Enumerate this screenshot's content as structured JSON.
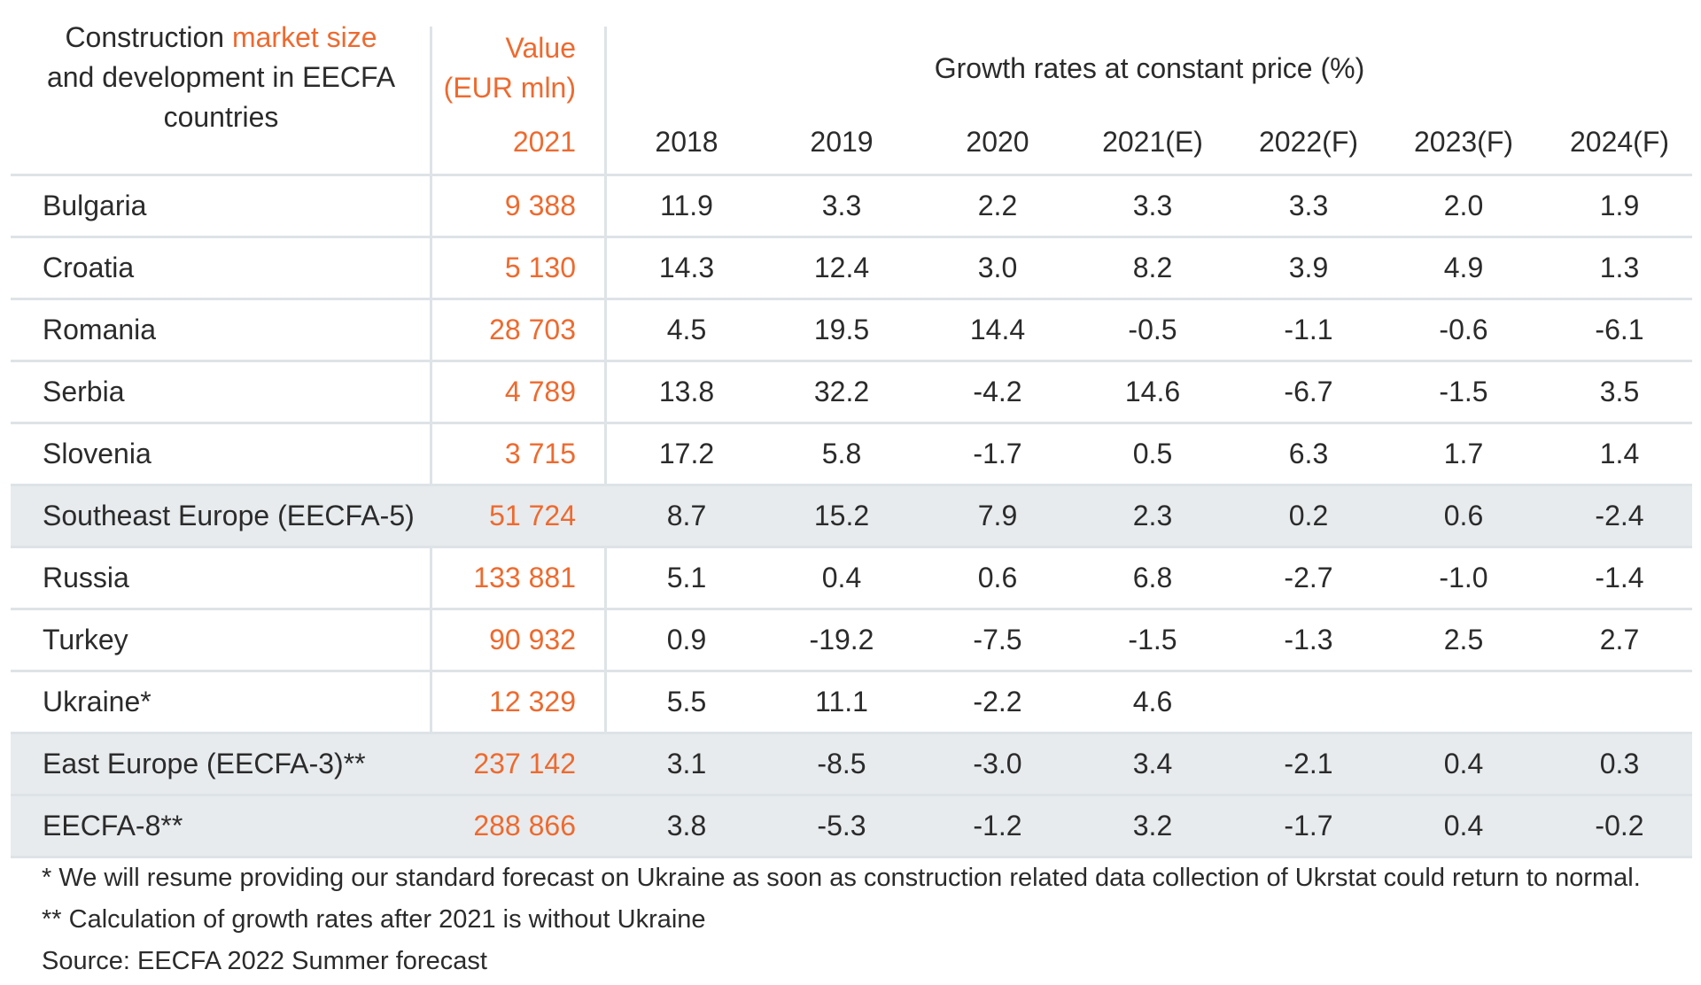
{
  "header": {
    "title_part1": "Construction ",
    "title_accent": "market size",
    "title_part2": "and development in EECFA",
    "title_part3": "countries",
    "value_line1": "Value",
    "value_line2": "(EUR mln)",
    "value_year": "2021",
    "growth_title": "Growth rates at constant price (%)"
  },
  "colors": {
    "accent": "#ee6a2e",
    "shaded_row": "#e7ebee",
    "grid": "#dde3e6"
  },
  "chart_data": {
    "type": "table",
    "columns": [
      "2018",
      "2019",
      "2020",
      "2021(E)",
      "2022(F)",
      "2023(F)",
      "2024(F)"
    ],
    "rows": [
      {
        "name": "Bulgaria",
        "value": "9 388",
        "growth": [
          "11.9",
          "3.3",
          "2.2",
          "3.3",
          "3.3",
          "2.0",
          "1.9"
        ],
        "shaded": false
      },
      {
        "name": "Croatia",
        "value": "5 130",
        "growth": [
          "14.3",
          "12.4",
          "3.0",
          "8.2",
          "3.9",
          "4.9",
          "1.3"
        ],
        "shaded": false
      },
      {
        "name": "Romania",
        "value": "28 703",
        "growth": [
          "4.5",
          "19.5",
          "14.4",
          "-0.5",
          "-1.1",
          "-0.6",
          "-6.1"
        ],
        "shaded": false
      },
      {
        "name": "Serbia",
        "value": "4 789",
        "growth": [
          "13.8",
          "32.2",
          "-4.2",
          "14.6",
          "-6.7",
          "-1.5",
          "3.5"
        ],
        "shaded": false
      },
      {
        "name": "Slovenia",
        "value": "3 715",
        "growth": [
          "17.2",
          "5.8",
          "-1.7",
          "0.5",
          "6.3",
          "1.7",
          "1.4"
        ],
        "shaded": false
      },
      {
        "name": "Southeast Europe (EECFA-5)",
        "value": "51 724",
        "growth": [
          "8.7",
          "15.2",
          "7.9",
          "2.3",
          "0.2",
          "0.6",
          "-2.4"
        ],
        "shaded": true
      },
      {
        "name": "Russia",
        "value": "133 881",
        "growth": [
          "5.1",
          "0.4",
          "0.6",
          "6.8",
          "-2.7",
          "-1.0",
          "-1.4"
        ],
        "shaded": false
      },
      {
        "name": "Turkey",
        "value": "90 932",
        "growth": [
          "0.9",
          "-19.2",
          "-7.5",
          "-1.5",
          "-1.3",
          "2.5",
          "2.7"
        ],
        "shaded": false
      },
      {
        "name": "Ukraine*",
        "value": "12 329",
        "growth": [
          "5.5",
          "11.1",
          "-2.2",
          "4.6",
          "",
          "",
          ""
        ],
        "shaded": false
      },
      {
        "name": "East Europe (EECFA-3)**",
        "value": "237 142",
        "growth": [
          "3.1",
          "-8.5",
          "-3.0",
          "3.4",
          "-2.1",
          "0.4",
          "0.3"
        ],
        "shaded": true
      },
      {
        "name": "EECFA-8**",
        "value": "288 866",
        "growth": [
          "3.8",
          "-5.3",
          "-1.2",
          "3.2",
          "-1.7",
          "0.4",
          "-0.2"
        ],
        "shaded": true
      }
    ]
  },
  "notes": [
    "* We will resume providing our standard forecast on Ukraine as soon as construction related data collection of Ukrstat could return to normal.",
    "** Calculation of growth rates after 2021 is without Ukraine",
    "Source: EECFA 2022 Summer forecast"
  ]
}
